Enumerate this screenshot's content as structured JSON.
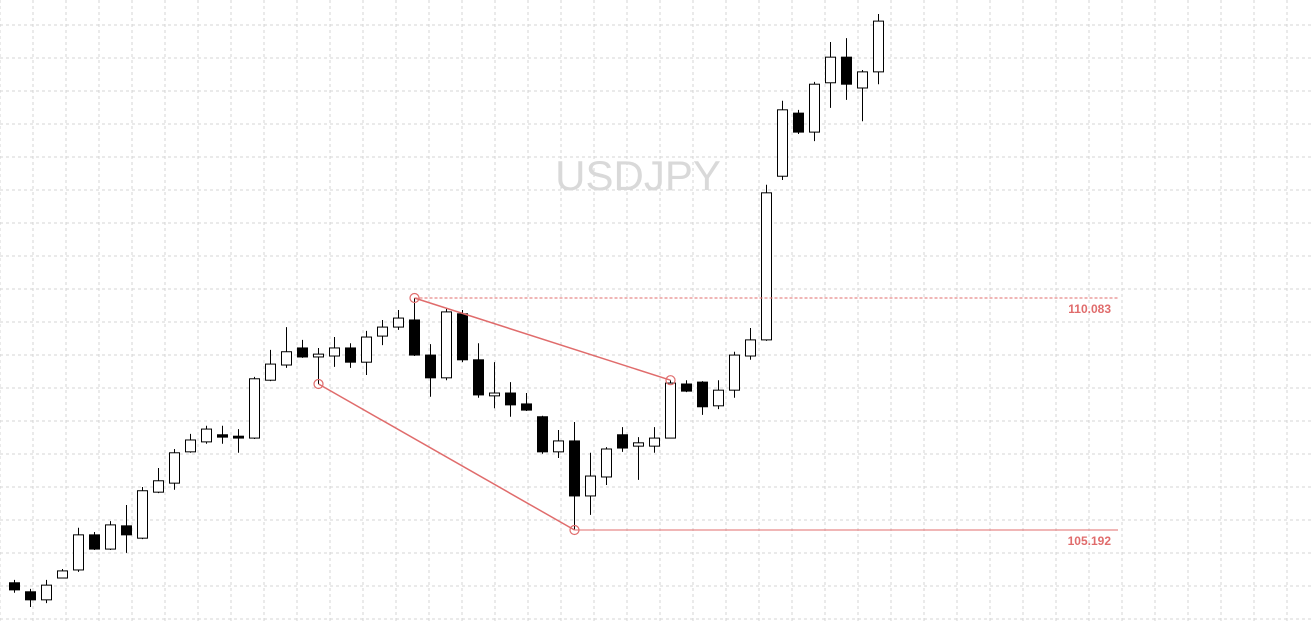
{
  "chart_data": {
    "type": "candlestick",
    "title": "USDJPY",
    "open": [
      104.08,
      103.89,
      103.72,
      104.18,
      104.35,
      105.09,
      104.79,
      105.28,
      105.02,
      105.99,
      106.18,
      106.84,
      107.05,
      107.2,
      107.17,
      107.13,
      108.35,
      108.67,
      109.03,
      108.84,
      108.86,
      109.03,
      108.73,
      109.28,
      109.47,
      109.62,
      108.88,
      108.4,
      109.75,
      108.78,
      108.02,
      108.08,
      107.85,
      107.58,
      106.84,
      107.07,
      105.91,
      106.31,
      107.2,
      106.96,
      106.96,
      107.13,
      108.27,
      108.31,
      107.81,
      108.14,
      108.86,
      109.2,
      112.65,
      113.98,
      113.58,
      114.62,
      115.16,
      114.51,
      114.85
    ],
    "high": [
      104.14,
      103.95,
      104.14,
      104.37,
      105.24,
      105.15,
      105.38,
      105.72,
      106.1,
      106.5,
      106.9,
      107.22,
      107.39,
      107.39,
      107.32,
      108.42,
      108.99,
      109.47,
      109.2,
      109.03,
      109.26,
      109.13,
      109.39,
      109.62,
      109.83,
      110.083,
      109.11,
      109.87,
      109.83,
      109.13,
      108.73,
      108.31,
      108.08,
      107.6,
      107.3,
      107.47,
      106.82,
      106.94,
      107.36,
      107.15,
      107.36,
      108.35,
      108.35,
      108.33,
      108.35,
      108.95,
      109.45,
      112.47,
      114.24,
      114.05,
      114.64,
      115.48,
      115.56,
      114.89,
      116.07
    ],
    "low": [
      103.87,
      103.57,
      103.65,
      104.18,
      104.31,
      104.77,
      104.77,
      104.71,
      105.0,
      105.97,
      106.04,
      106.82,
      107.01,
      107.01,
      106.82,
      107.11,
      108.33,
      108.61,
      108.82,
      108.27,
      108.63,
      108.61,
      108.46,
      109.09,
      109.41,
      108.86,
      108.0,
      108.35,
      108.73,
      107.98,
      107.76,
      107.58,
      107.7,
      106.8,
      106.71,
      105.192,
      105.51,
      106.14,
      106.84,
      106.25,
      106.82,
      107.13,
      108.1,
      107.62,
      107.74,
      107.98,
      108.78,
      109.18,
      112.57,
      113.54,
      113.39,
      114.09,
      114.26,
      113.81,
      114.59
    ],
    "close": [
      103.93,
      103.72,
      104.03,
      104.33,
      105.09,
      104.79,
      105.3,
      105.09,
      106.02,
      106.23,
      106.82,
      107.09,
      107.32,
      107.15,
      107.13,
      108.38,
      108.69,
      108.95,
      108.84,
      108.9,
      109.03,
      108.73,
      109.26,
      109.47,
      109.66,
      108.88,
      108.4,
      109.79,
      108.78,
      108.04,
      108.08,
      107.83,
      107.72,
      106.84,
      107.07,
      105.91,
      106.33,
      106.9,
      106.92,
      107.03,
      107.13,
      108.29,
      108.12,
      107.79,
      108.14,
      108.88,
      109.2,
      112.3,
      114.05,
      113.58,
      114.59,
      115.16,
      114.59,
      114.85,
      115.92
    ],
    "ylim": [
      103.274,
      116.365
    ],
    "grid": true,
    "levels": [
      110.083,
      105.192
    ],
    "trendlines": [
      {
        "from": 25,
        "to": 41,
        "on": "high"
      },
      {
        "from": 19,
        "to": 35,
        "on": "low"
      }
    ],
    "up_color": "#ffffff",
    "down_color": "#000000",
    "annotation_color": "#e06c6c"
  }
}
